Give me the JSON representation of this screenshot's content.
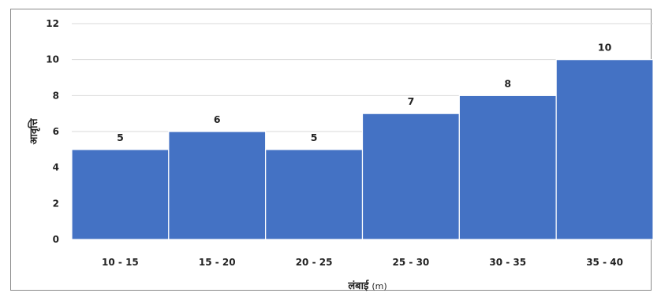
{
  "chart_data": {
    "type": "bar",
    "categories": [
      "10 - 15",
      "15 - 20",
      "20 - 25",
      "25 - 30",
      "30 - 35",
      "35 - 40"
    ],
    "values": [
      5,
      6,
      5,
      7,
      8,
      10
    ],
    "data_labels": [
      "5",
      "6",
      "5",
      "7",
      "8",
      "10"
    ],
    "xlabel": "लंबाई",
    "xlabel_unit": "(m)",
    "ylabel": "आवृत्ति",
    "ylim": [
      0,
      12
    ],
    "yticks": [
      "0",
      "2",
      "4",
      "6",
      "8",
      "10",
      "12"
    ],
    "grid": true,
    "legend": "none",
    "bar_color": "#4472c4",
    "grid_color": "#d9d9d9"
  }
}
